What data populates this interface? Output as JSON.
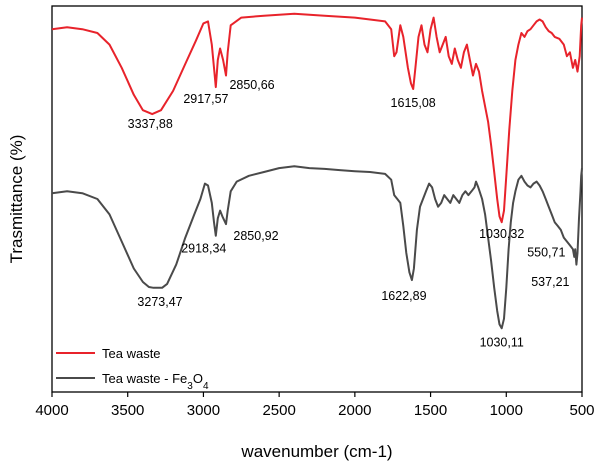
{
  "chart_data": {
    "type": "line",
    "xlabel": "wavenumber (cm-1)",
    "ylabel": "Trasmittance (%)",
    "xlim": [
      4000,
      500
    ],
    "x_reversed": true,
    "y_ticks_shown": false,
    "grid": false,
    "legend_position": "bottom-left",
    "x_ticks": [
      4000,
      3500,
      3000,
      2500,
      2000,
      1500,
      1000,
      500
    ],
    "series": [
      {
        "name": "Tea waste",
        "color": "#e8232b",
        "points": [
          [
            4000,
            0.94
          ],
          [
            3900,
            0.945
          ],
          [
            3800,
            0.94
          ],
          [
            3700,
            0.93
          ],
          [
            3620,
            0.9
          ],
          [
            3540,
            0.84
          ],
          [
            3460,
            0.77
          ],
          [
            3400,
            0.73
          ],
          [
            3338,
            0.72
          ],
          [
            3280,
            0.73
          ],
          [
            3200,
            0.78
          ],
          [
            3120,
            0.85
          ],
          [
            3050,
            0.91
          ],
          [
            3000,
            0.955
          ],
          [
            2970,
            0.96
          ],
          [
            2945,
            0.9
          ],
          [
            2930,
            0.84
          ],
          [
            2918,
            0.79
          ],
          [
            2905,
            0.86
          ],
          [
            2890,
            0.89
          ],
          [
            2870,
            0.86
          ],
          [
            2851,
            0.82
          ],
          [
            2840,
            0.88
          ],
          [
            2820,
            0.95
          ],
          [
            2750,
            0.97
          ],
          [
            2600,
            0.975
          ],
          [
            2400,
            0.98
          ],
          [
            2200,
            0.975
          ],
          [
            2000,
            0.97
          ],
          [
            1900,
            0.965
          ],
          [
            1800,
            0.96
          ],
          [
            1760,
            0.94
          ],
          [
            1740,
            0.87
          ],
          [
            1725,
            0.88
          ],
          [
            1700,
            0.95
          ],
          [
            1680,
            0.92
          ],
          [
            1650,
            0.84
          ],
          [
            1630,
            0.8
          ],
          [
            1615,
            0.785
          ],
          [
            1600,
            0.84
          ],
          [
            1580,
            0.92
          ],
          [
            1560,
            0.95
          ],
          [
            1540,
            0.9
          ],
          [
            1520,
            0.88
          ],
          [
            1500,
            0.94
          ],
          [
            1480,
            0.97
          ],
          [
            1460,
            0.92
          ],
          [
            1440,
            0.88
          ],
          [
            1420,
            0.9
          ],
          [
            1400,
            0.92
          ],
          [
            1380,
            0.87
          ],
          [
            1360,
            0.85
          ],
          [
            1340,
            0.89
          ],
          [
            1320,
            0.86
          ],
          [
            1300,
            0.84
          ],
          [
            1280,
            0.88
          ],
          [
            1260,
            0.9
          ],
          [
            1240,
            0.86
          ],
          [
            1220,
            0.82
          ],
          [
            1200,
            0.85
          ],
          [
            1180,
            0.83
          ],
          [
            1160,
            0.78
          ],
          [
            1140,
            0.74
          ],
          [
            1120,
            0.7
          ],
          [
            1100,
            0.64
          ],
          [
            1080,
            0.57
          ],
          [
            1060,
            0.5
          ],
          [
            1045,
            0.455
          ],
          [
            1030,
            0.44
          ],
          [
            1015,
            0.47
          ],
          [
            1000,
            0.56
          ],
          [
            980,
            0.68
          ],
          [
            960,
            0.78
          ],
          [
            940,
            0.86
          ],
          [
            920,
            0.9
          ],
          [
            900,
            0.93
          ],
          [
            880,
            0.92
          ],
          [
            860,
            0.935
          ],
          [
            840,
            0.94
          ],
          [
            820,
            0.95
          ],
          [
            800,
            0.96
          ],
          [
            780,
            0.965
          ],
          [
            760,
            0.96
          ],
          [
            740,
            0.945
          ],
          [
            720,
            0.935
          ],
          [
            700,
            0.93
          ],
          [
            680,
            0.92
          ],
          [
            650,
            0.915
          ],
          [
            620,
            0.9
          ],
          [
            600,
            0.87
          ],
          [
            580,
            0.88
          ],
          [
            560,
            0.84
          ],
          [
            545,
            0.86
          ],
          [
            530,
            0.83
          ],
          [
            515,
            0.87
          ],
          [
            505,
            0.95
          ],
          [
            500,
            0.97
          ]
        ]
      },
      {
        "name": "Tea waste - Fe3O4",
        "color": "#4a4a4a",
        "points": [
          [
            4000,
            0.515
          ],
          [
            3900,
            0.52
          ],
          [
            3800,
            0.515
          ],
          [
            3700,
            0.5
          ],
          [
            3620,
            0.46
          ],
          [
            3540,
            0.39
          ],
          [
            3460,
            0.32
          ],
          [
            3400,
            0.285
          ],
          [
            3360,
            0.272
          ],
          [
            3330,
            0.27
          ],
          [
            3273,
            0.27
          ],
          [
            3240,
            0.28
          ],
          [
            3180,
            0.33
          ],
          [
            3120,
            0.4
          ],
          [
            3060,
            0.46
          ],
          [
            3020,
            0.5
          ],
          [
            2990,
            0.54
          ],
          [
            2970,
            0.535
          ],
          [
            2945,
            0.49
          ],
          [
            2930,
            0.44
          ],
          [
            2918,
            0.405
          ],
          [
            2905,
            0.45
          ],
          [
            2890,
            0.47
          ],
          [
            2875,
            0.455
          ],
          [
            2851,
            0.435
          ],
          [
            2840,
            0.47
          ],
          [
            2820,
            0.52
          ],
          [
            2780,
            0.545
          ],
          [
            2700,
            0.56
          ],
          [
            2600,
            0.57
          ],
          [
            2500,
            0.58
          ],
          [
            2400,
            0.585
          ],
          [
            2300,
            0.58
          ],
          [
            2200,
            0.578
          ],
          [
            2100,
            0.575
          ],
          [
            2000,
            0.572
          ],
          [
            1900,
            0.57
          ],
          [
            1800,
            0.565
          ],
          [
            1760,
            0.55
          ],
          [
            1740,
            0.51
          ],
          [
            1720,
            0.5
          ],
          [
            1700,
            0.49
          ],
          [
            1680,
            0.43
          ],
          [
            1660,
            0.36
          ],
          [
            1640,
            0.31
          ],
          [
            1623,
            0.29
          ],
          [
            1610,
            0.32
          ],
          [
            1590,
            0.42
          ],
          [
            1570,
            0.48
          ],
          [
            1550,
            0.5
          ],
          [
            1530,
            0.52
          ],
          [
            1510,
            0.54
          ],
          [
            1490,
            0.53
          ],
          [
            1470,
            0.5
          ],
          [
            1450,
            0.48
          ],
          [
            1430,
            0.49
          ],
          [
            1410,
            0.51
          ],
          [
            1390,
            0.5
          ],
          [
            1370,
            0.49
          ],
          [
            1350,
            0.51
          ],
          [
            1330,
            0.5
          ],
          [
            1310,
            0.49
          ],
          [
            1290,
            0.51
          ],
          [
            1270,
            0.52
          ],
          [
            1250,
            0.51
          ],
          [
            1230,
            0.52
          ],
          [
            1210,
            0.53
          ],
          [
            1200,
            0.545
          ],
          [
            1185,
            0.53
          ],
          [
            1160,
            0.5
          ],
          [
            1140,
            0.46
          ],
          [
            1120,
            0.4
          ],
          [
            1100,
            0.34
          ],
          [
            1080,
            0.27
          ],
          [
            1060,
            0.21
          ],
          [
            1045,
            0.175
          ],
          [
            1030,
            0.165
          ],
          [
            1015,
            0.19
          ],
          [
            1000,
            0.27
          ],
          [
            985,
            0.37
          ],
          [
            970,
            0.44
          ],
          [
            955,
            0.49
          ],
          [
            940,
            0.52
          ],
          [
            920,
            0.55
          ],
          [
            900,
            0.56
          ],
          [
            880,
            0.545
          ],
          [
            860,
            0.535
          ],
          [
            840,
            0.53
          ],
          [
            820,
            0.54
          ],
          [
            800,
            0.545
          ],
          [
            780,
            0.535
          ],
          [
            760,
            0.52
          ],
          [
            740,
            0.5
          ],
          [
            720,
            0.48
          ],
          [
            700,
            0.46
          ],
          [
            680,
            0.44
          ],
          [
            660,
            0.43
          ],
          [
            640,
            0.42
          ],
          [
            620,
            0.4
          ],
          [
            600,
            0.39
          ],
          [
            580,
            0.38
          ],
          [
            560,
            0.37
          ],
          [
            551,
            0.35
          ],
          [
            545,
            0.37
          ],
          [
            537,
            0.33
          ],
          [
            530,
            0.36
          ],
          [
            520,
            0.45
          ],
          [
            510,
            0.52
          ],
          [
            505,
            0.56
          ],
          [
            500,
            0.58
          ]
        ]
      }
    ],
    "annotations": [
      {
        "text": "3337,88",
        "x": 3337.88,
        "series": 0
      },
      {
        "text": "2917,57",
        "x": 2917.57,
        "series": 0
      },
      {
        "text": "2850,66",
        "x": 2850.66,
        "series": 0
      },
      {
        "text": "1615,08",
        "x": 1615.08,
        "series": 0
      },
      {
        "text": "1030,32",
        "x": 1030.32,
        "series": 0
      },
      {
        "text": "3273,47",
        "x": 3273.47,
        "series": 1
      },
      {
        "text": "2918,34",
        "x": 2918.34,
        "series": 1
      },
      {
        "text": "2850,92",
        "x": 2850.92,
        "series": 1
      },
      {
        "text": "1622,89",
        "x": 1622.89,
        "series": 1
      },
      {
        "text": "1030,11",
        "x": 1030.11,
        "series": 1
      },
      {
        "text": "550,71",
        "x": 550.71,
        "series": 1
      },
      {
        "text": "537,21",
        "x": 537.21,
        "series": 1
      }
    ]
  },
  "legend": {
    "tea_waste": "Tea waste",
    "fe_prefix": "Tea waste - Fe",
    "fe_sub1": "3",
    "fe_mid": "O",
    "fe_sub2": "4"
  }
}
